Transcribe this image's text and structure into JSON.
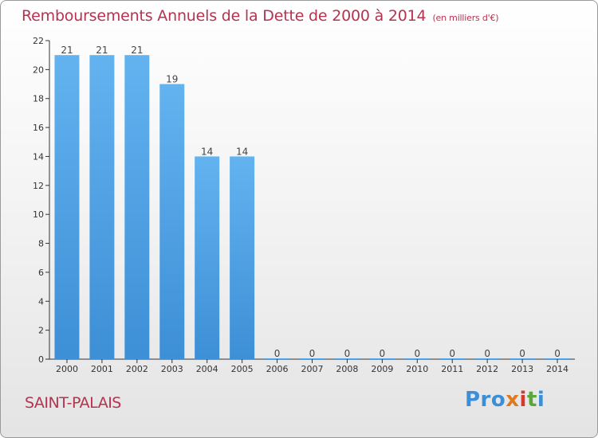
{
  "chart_data": {
    "type": "bar",
    "title": "Remboursements Annuels de la Dette de 2000 à 2014",
    "unit": "(en milliers d'€)",
    "categories": [
      "2000",
      "2001",
      "2002",
      "2003",
      "2004",
      "2005",
      "2006",
      "2007",
      "2008",
      "2009",
      "2010",
      "2011",
      "2012",
      "2013",
      "2014"
    ],
    "values": [
      21,
      21,
      21,
      19,
      14,
      14,
      0,
      0,
      0,
      0,
      0,
      0,
      0,
      0,
      0
    ],
    "ylim": [
      0,
      22
    ],
    "yticks": [
      0,
      2,
      4,
      6,
      8,
      10,
      12,
      14,
      16,
      18,
      20,
      22
    ],
    "grid": false,
    "bar_color": "#3d8fd6"
  },
  "footer": {
    "city": "SAINT-PALAIS",
    "logo": [
      "Pro",
      "x",
      "i",
      "t",
      "i"
    ]
  }
}
